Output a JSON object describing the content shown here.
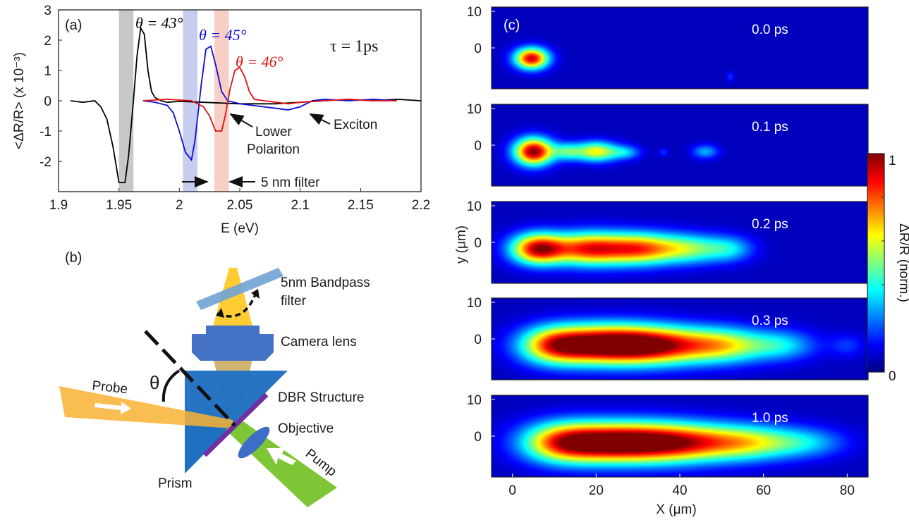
{
  "panel_a": {
    "label": "(a)",
    "ylabel": "<ΔR/R> (x 10⁻³)",
    "xlabel": "E (eV)",
    "tau": "τ = 1ps",
    "annotations": {
      "theta43": "θ = 43°",
      "theta45": "θ = 45°",
      "theta46": "θ = 46°",
      "lower_polariton_1": "Lower",
      "lower_polariton_2": "Polariton",
      "exciton": "Exciton",
      "filter": "5 nm filter"
    },
    "colors": {
      "theta43": "#000000",
      "theta45": "#0a0adf",
      "theta46": "#e01010",
      "band43": "#c8c8c8",
      "band45": "#c6cdee",
      "band46": "#f7cfc4"
    }
  },
  "panel_b": {
    "label": "(b)",
    "bandpass_1": "5nm Bandpass",
    "bandpass_2": "filter",
    "camera_lens": "Camera lens",
    "dbr": "DBR Structure",
    "objective": "Objective",
    "probe": "Probe",
    "pump": "Pump",
    "prism": "Prism",
    "theta": "θ"
  },
  "panel_c": {
    "label": "(c)",
    "ylabel": "y (μm)",
    "xlabel": "X (μm)",
    "frame_times": [
      "0.0 ps",
      "0.1 ps",
      "0.2 ps",
      "0.3 ps",
      "1.0 ps"
    ],
    "colorbar_label": "ΔR/R (norm.)",
    "colorbar_ticks": [
      "1",
      "0"
    ]
  },
  "chart_data": [
    {
      "type": "line",
      "title": "",
      "xlabel": "E (eV)",
      "ylabel": "<ΔR/R> (x 10⁻³)",
      "xlim": [
        1.9,
        2.2
      ],
      "ylim": [
        -3,
        3
      ],
      "xticks": [
        "1.9",
        "1.95",
        "2",
        "2.05",
        "2.1",
        "2.15",
        "2.2"
      ],
      "yticks": [
        "-2",
        "-1",
        "0",
        "1",
        "2",
        "3"
      ],
      "highlight_bands": [
        {
          "x0": 1.95,
          "x1": 1.962
        },
        {
          "x0": 2.003,
          "x1": 2.015
        },
        {
          "x0": 2.029,
          "x1": 2.041
        }
      ],
      "series": [
        {
          "name": "θ = 43°",
          "color": "#000000",
          "x": [
            1.91,
            1.92,
            1.93,
            1.935,
            1.94,
            1.945,
            1.95,
            1.955,
            1.958,
            1.962,
            1.965,
            1.968,
            1.971,
            1.974,
            1.977,
            1.98,
            1.985,
            1.99,
            2.0,
            2.02,
            2.05,
            2.08,
            2.1,
            2.12,
            2.14,
            2.16,
            2.18,
            2.2
          ],
          "y": [
            0.0,
            -0.05,
            0.0,
            -0.2,
            -0.6,
            -1.5,
            -2.7,
            -2.7,
            -1.8,
            0.0,
            1.5,
            2.4,
            2.2,
            1.0,
            0.3,
            0.1,
            0.0,
            -0.05,
            -0.02,
            -0.05,
            -0.1,
            -0.1,
            -0.05,
            0.0,
            0.05,
            0.0,
            0.05,
            0.0
          ]
        },
        {
          "name": "θ = 45°",
          "color": "#0a0adf",
          "x": [
            1.97,
            1.98,
            1.99,
            1.995,
            2.0,
            2.005,
            2.01,
            2.013,
            2.018,
            2.022,
            2.026,
            2.03,
            2.035,
            2.04,
            2.05,
            2.07,
            2.09,
            2.1,
            2.11,
            2.12,
            2.14,
            2.16,
            2.18
          ],
          "y": [
            0.0,
            -0.05,
            -0.15,
            -0.4,
            -1.0,
            -1.7,
            -1.95,
            -1.3,
            0.5,
            1.7,
            1.8,
            1.2,
            0.3,
            0.0,
            -0.1,
            -0.2,
            -0.3,
            -0.2,
            0.0,
            0.05,
            0.0,
            0.05,
            0.0
          ]
        },
        {
          "name": "θ = 46°",
          "color": "#e01010",
          "x": [
            1.97,
            1.99,
            2.01,
            2.02,
            2.025,
            2.03,
            2.035,
            2.038,
            2.042,
            2.046,
            2.05,
            2.054,
            2.058,
            2.062,
            2.07,
            2.09,
            2.1,
            2.12,
            2.14,
            2.16,
            2.18
          ],
          "y": [
            0.0,
            0.05,
            0.0,
            -0.2,
            -0.5,
            -1.0,
            -1.0,
            -0.5,
            0.4,
            1.0,
            1.1,
            0.8,
            0.3,
            0.05,
            0.0,
            -0.1,
            -0.05,
            0.0,
            0.05,
            0.0,
            0.0
          ]
        }
      ]
    },
    {
      "type": "heatmap",
      "title": "",
      "xlabel": "X (μm)",
      "ylabel": "y (μm)",
      "xlim": [
        -5,
        85
      ],
      "xticks": [
        "0",
        "20",
        "40",
        "60",
        "80"
      ],
      "yticks": [
        "10",
        "0"
      ],
      "colorbar_range": [
        0,
        1
      ],
      "frames": [
        {
          "time": "0.0 ps",
          "blobs": [
            {
              "x": 4.5,
              "y": -2.5,
              "sx": 2.8,
              "sy": 1.8,
              "a": 0.92
            },
            {
              "x": 52,
              "y": -7,
              "sx": 0.6,
              "sy": 0.8,
              "a": 0.12
            }
          ]
        },
        {
          "time": "0.1 ps",
          "blobs": [
            {
              "x": 5,
              "y": -1.5,
              "sx": 3.2,
              "sy": 2.3,
              "a": 1.0
            },
            {
              "x": 13,
              "y": -1.5,
              "sx": 2.5,
              "sy": 1.5,
              "a": 0.35
            },
            {
              "x": 20,
              "y": -1.5,
              "sx": 3.5,
              "sy": 1.7,
              "a": 0.6
            },
            {
              "x": 27,
              "y": -1.7,
              "sx": 2.5,
              "sy": 1.2,
              "a": 0.25
            },
            {
              "x": 36,
              "y": -1.7,
              "sx": 0.8,
              "sy": 0.7,
              "a": 0.12
            },
            {
              "x": 46,
              "y": -1.5,
              "sx": 2.2,
              "sy": 1.2,
              "a": 0.25
            }
          ]
        },
        {
          "time": "0.2 ps",
          "blobs": [
            {
              "x": 6,
              "y": -1.5,
              "sx": 4.5,
              "sy": 2.6,
              "a": 0.9
            },
            {
              "x": 18,
              "y": -1.5,
              "sx": 6.0,
              "sy": 2.8,
              "a": 0.78
            },
            {
              "x": 30,
              "y": -1.5,
              "sx": 6.0,
              "sy": 2.7,
              "a": 0.7
            },
            {
              "x": 42,
              "y": -1.5,
              "sx": 6.0,
              "sy": 2.5,
              "a": 0.45
            },
            {
              "x": 52,
              "y": -1.5,
              "sx": 4.0,
              "sy": 2.2,
              "a": 0.25
            }
          ]
        },
        {
          "time": "0.3 ps",
          "blobs": [
            {
              "x": 10,
              "y": -1.5,
              "sx": 6.0,
              "sy": 3.2,
              "a": 0.7
            },
            {
              "x": 22,
              "y": -1.3,
              "sx": 8.0,
              "sy": 3.3,
              "a": 0.95
            },
            {
              "x": 35,
              "y": -1.5,
              "sx": 8.0,
              "sy": 3.2,
              "a": 0.8
            },
            {
              "x": 50,
              "y": -1.5,
              "sx": 7.0,
              "sy": 3.0,
              "a": 0.55
            },
            {
              "x": 64,
              "y": -1.5,
              "sx": 6.0,
              "sy": 2.6,
              "a": 0.3
            },
            {
              "x": 80,
              "y": -1.5,
              "sx": 3.0,
              "sy": 2.0,
              "a": 0.12
            }
          ]
        },
        {
          "time": "1.0 ps",
          "blobs": [
            {
              "x": 12,
              "y": -1.5,
              "sx": 7.0,
              "sy": 3.4,
              "a": 0.7
            },
            {
              "x": 25,
              "y": -1.5,
              "sx": 9.0,
              "sy": 3.4,
              "a": 0.92
            },
            {
              "x": 40,
              "y": -1.5,
              "sx": 9.0,
              "sy": 3.3,
              "a": 0.75
            },
            {
              "x": 56,
              "y": -1.5,
              "sx": 8.0,
              "sy": 3.0,
              "a": 0.5
            },
            {
              "x": 70,
              "y": -1.5,
              "sx": 7.0,
              "sy": 2.6,
              "a": 0.25
            }
          ]
        }
      ]
    }
  ]
}
